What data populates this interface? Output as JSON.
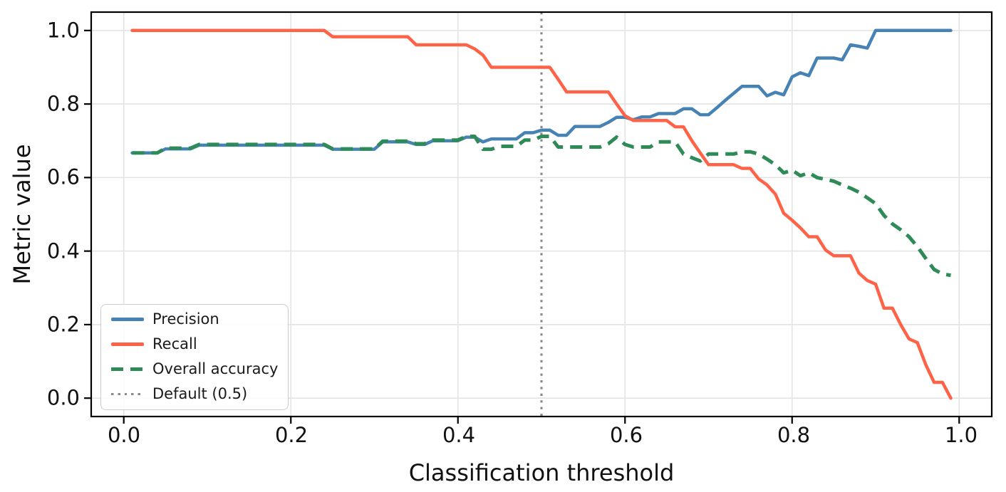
{
  "figure": {
    "xlabel": "Classification threshold",
    "ylabel": "Metric value",
    "x_ticks": [
      "0.0",
      "0.2",
      "0.4",
      "0.6",
      "0.8",
      "1.0"
    ],
    "y_ticks": [
      "0.0",
      "0.2",
      "0.4",
      "0.6",
      "0.8",
      "1.0"
    ]
  },
  "colors": {
    "precision": "#4682B4",
    "recall": "#FF6347",
    "accuracy": "#2E8B57",
    "default_line": "#8a8a8a",
    "grid": "#e3e3e3",
    "spine": "#000000"
  },
  "chart_data": {
    "type": "line",
    "title": "",
    "xlabel": "Classification threshold",
    "ylabel": "Metric value",
    "grid": true,
    "legend_position": "lower left",
    "xlim": [
      -0.039,
      1.039
    ],
    "ylim": [
      -0.05,
      1.05
    ],
    "x_tick_values": [
      0.0,
      0.2,
      0.4,
      0.6,
      0.8,
      1.0
    ],
    "y_tick_values": [
      0.0,
      0.2,
      0.4,
      0.6,
      0.8,
      1.0
    ],
    "x": [
      0.01,
      0.02,
      0.03,
      0.04,
      0.05,
      0.06,
      0.07,
      0.08,
      0.09,
      0.1,
      0.11,
      0.12,
      0.13,
      0.14,
      0.15,
      0.16,
      0.17,
      0.18,
      0.19,
      0.2,
      0.21,
      0.22,
      0.23,
      0.24,
      0.25,
      0.26,
      0.27,
      0.28,
      0.29,
      0.3,
      0.31,
      0.32,
      0.33,
      0.34,
      0.35,
      0.36,
      0.37,
      0.38,
      0.39,
      0.4,
      0.41,
      0.42,
      0.43,
      0.44,
      0.45,
      0.46,
      0.47,
      0.48,
      0.49,
      0.5,
      0.51,
      0.52,
      0.53,
      0.54,
      0.55,
      0.56,
      0.57,
      0.58,
      0.59,
      0.6,
      0.61,
      0.62,
      0.63,
      0.64,
      0.65,
      0.66,
      0.67,
      0.68,
      0.69,
      0.7,
      0.71,
      0.72,
      0.73,
      0.74,
      0.75,
      0.76,
      0.77,
      0.78,
      0.79,
      0.8,
      0.81,
      0.82,
      0.83,
      0.84,
      0.85,
      0.86,
      0.87,
      0.88,
      0.89,
      0.9,
      0.91,
      0.92,
      0.93,
      0.94,
      0.95,
      0.96,
      0.97,
      0.98,
      0.99
    ],
    "series": [
      {
        "name": "Precision",
        "color": "#4682B4",
        "style": "solid",
        "values": [
          0.667,
          0.667,
          0.667,
          0.667,
          0.678,
          0.678,
          0.678,
          0.678,
          0.688,
          0.688,
          0.688,
          0.688,
          0.688,
          0.688,
          0.688,
          0.688,
          0.688,
          0.688,
          0.688,
          0.688,
          0.688,
          0.688,
          0.688,
          0.688,
          0.677,
          0.677,
          0.677,
          0.677,
          0.677,
          0.677,
          0.697,
          0.697,
          0.697,
          0.697,
          0.69,
          0.69,
          0.7,
          0.7,
          0.7,
          0.7,
          0.71,
          0.71,
          0.697,
          0.705,
          0.705,
          0.705,
          0.705,
          0.722,
          0.722,
          0.729,
          0.729,
          0.715,
          0.715,
          0.739,
          0.739,
          0.739,
          0.739,
          0.75,
          0.764,
          0.764,
          0.757,
          0.765,
          0.765,
          0.774,
          0.774,
          0.774,
          0.787,
          0.787,
          0.771,
          0.771,
          0.79,
          0.81,
          0.829,
          0.848,
          0.848,
          0.848,
          0.822,
          0.832,
          0.825,
          0.874,
          0.885,
          0.877,
          0.925,
          0.925,
          0.925,
          0.92,
          0.961,
          0.957,
          0.952,
          1.0,
          1.0,
          1.0,
          1.0,
          1.0,
          1.0,
          1.0,
          1.0,
          1.0,
          1.0
        ]
      },
      {
        "name": "Recall",
        "color": "#FF6347",
        "style": "solid",
        "values": [
          1.0,
          1.0,
          1.0,
          1.0,
          1.0,
          1.0,
          1.0,
          1.0,
          1.0,
          1.0,
          1.0,
          1.0,
          1.0,
          1.0,
          1.0,
          1.0,
          1.0,
          1.0,
          1.0,
          1.0,
          1.0,
          1.0,
          1.0,
          1.0,
          0.983,
          0.983,
          0.983,
          0.983,
          0.983,
          0.983,
          0.983,
          0.983,
          0.983,
          0.983,
          0.961,
          0.961,
          0.961,
          0.961,
          0.961,
          0.961,
          0.961,
          0.95,
          0.933,
          0.9,
          0.9,
          0.9,
          0.9,
          0.9,
          0.9,
          0.9,
          0.9,
          0.867,
          0.833,
          0.833,
          0.833,
          0.833,
          0.833,
          0.833,
          0.8,
          0.768,
          0.755,
          0.755,
          0.755,
          0.755,
          0.755,
          0.738,
          0.738,
          0.7,
          0.667,
          0.635,
          0.635,
          0.635,
          0.635,
          0.625,
          0.625,
          0.596,
          0.58,
          0.555,
          0.503,
          0.484,
          0.463,
          0.439,
          0.439,
          0.403,
          0.387,
          0.387,
          0.387,
          0.34,
          0.32,
          0.31,
          0.245,
          0.245,
          0.2,
          0.161,
          0.151,
          0.091,
          0.043,
          0.043,
          0.0
        ]
      },
      {
        "name": "Overall accuracy",
        "color": "#2E8B57",
        "style": "dashed",
        "values": [
          0.667,
          0.667,
          0.667,
          0.667,
          0.68,
          0.68,
          0.68,
          0.68,
          0.69,
          0.69,
          0.69,
          0.69,
          0.69,
          0.69,
          0.69,
          0.69,
          0.69,
          0.69,
          0.69,
          0.69,
          0.69,
          0.69,
          0.69,
          0.69,
          0.678,
          0.678,
          0.678,
          0.678,
          0.678,
          0.678,
          0.699,
          0.699,
          0.699,
          0.699,
          0.692,
          0.692,
          0.702,
          0.702,
          0.702,
          0.702,
          0.712,
          0.712,
          0.677,
          0.677,
          0.685,
          0.685,
          0.685,
          0.702,
          0.702,
          0.712,
          0.712,
          0.683,
          0.683,
          0.683,
          0.683,
          0.683,
          0.683,
          0.692,
          0.71,
          0.69,
          0.683,
          0.683,
          0.683,
          0.697,
          0.697,
          0.697,
          0.664,
          0.654,
          0.645,
          0.664,
          0.664,
          0.664,
          0.664,
          0.67,
          0.67,
          0.664,
          0.65,
          0.635,
          0.613,
          0.62,
          0.605,
          0.613,
          0.6,
          0.595,
          0.59,
          0.58,
          0.571,
          0.56,
          0.545,
          0.529,
          0.497,
          0.474,
          0.458,
          0.439,
          0.412,
          0.38,
          0.35,
          0.338,
          0.334
        ]
      }
    ],
    "vline": {
      "x": 0.5,
      "label": "Default (0.5)",
      "color": "#8a8a8a",
      "style": "dotted"
    }
  }
}
